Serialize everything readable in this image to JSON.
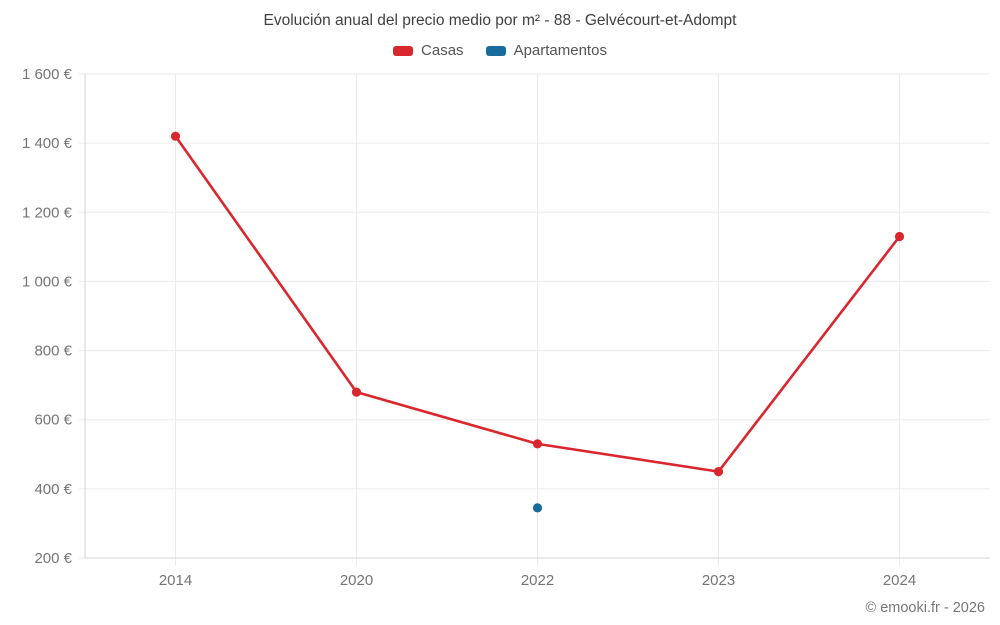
{
  "page": {
    "footer": "© emooki.fr - 2026"
  },
  "chart_data": {
    "type": "line",
    "title": "Evolución anual del precio medio por m² - 88 - Gelvécourt-et-Adompt",
    "categories": [
      "2014",
      "2020",
      "2022",
      "2023",
      "2024"
    ],
    "series": [
      {
        "name": "Casas",
        "color": "#d9272e",
        "values": [
          1420,
          680,
          530,
          450,
          1130
        ]
      },
      {
        "name": "Apartamentos",
        "color": "#176c9c",
        "values": [
          null,
          null,
          345,
          null,
          null
        ]
      }
    ],
    "ylim": [
      200,
      1600
    ],
    "y_ticks": [
      200,
      400,
      600,
      800,
      1000,
      1200,
      1400,
      1600
    ],
    "y_tick_labels": [
      "200 €",
      "400 €",
      "600 €",
      "800 €",
      "1 000 €",
      "1 200 €",
      "1 400 €",
      "1 600 €"
    ],
    "xlabel": "",
    "ylabel": "",
    "grid": true,
    "legend_position": "top",
    "grid_color": "#ebebeb",
    "axis_color": "#d6d6d6",
    "tick_label_color": "#757575"
  }
}
